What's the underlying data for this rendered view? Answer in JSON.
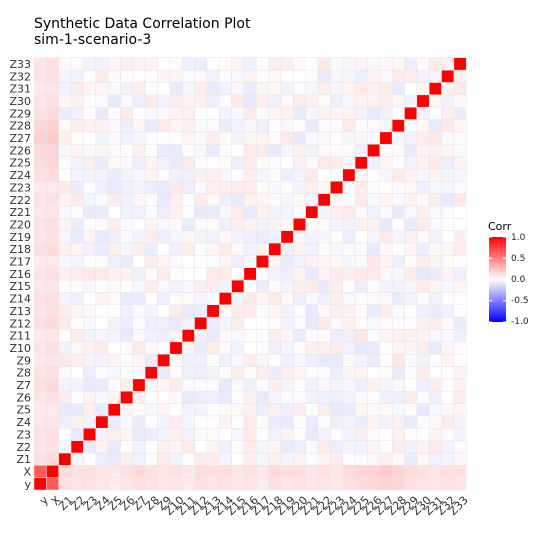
{
  "chart_data": {
    "type": "heatmap",
    "title": "Synthetic Data Correlation Plot",
    "subtitle": "sim-1-scenario-3",
    "variables": [
      "y",
      "X",
      "Z1",
      "Z2",
      "Z3",
      "Z4",
      "Z5",
      "Z6",
      "Z7",
      "Z8",
      "Z9",
      "Z10",
      "Z11",
      "Z12",
      "Z13",
      "Z14",
      "Z15",
      "Z16",
      "Z17",
      "Z18",
      "Z19",
      "Z20",
      "Z21",
      "Z22",
      "Z23",
      "Z24",
      "Z25",
      "Z26",
      "Z27",
      "Z28",
      "Z29",
      "Z30",
      "Z31",
      "Z32",
      "Z33"
    ],
    "correlations": {
      "diagonal": 1.0,
      "y_X": 0.65,
      "y_Z": [
        0.12,
        0.1,
        0.11,
        0.09,
        0.08,
        0.1,
        0.13,
        0.11,
        0.09,
        0.1,
        0.08,
        0.12,
        0.1,
        0.11,
        0.09,
        0.1,
        0.08,
        0.12,
        0.1,
        0.11,
        0.09,
        0.1,
        0.08,
        0.12,
        0.14,
        0.15,
        0.18,
        0.16,
        0.12,
        0.1,
        0.09,
        0.11,
        0.1
      ],
      "X_Z": [
        0.14,
        0.12,
        0.13,
        0.1,
        0.09,
        0.12,
        0.15,
        0.13,
        0.1,
        0.12,
        0.09,
        0.14,
        0.12,
        0.13,
        0.1,
        0.12,
        0.09,
        0.14,
        0.12,
        0.13,
        0.1,
        0.12,
        0.09,
        0.14,
        0.16,
        0.17,
        0.2,
        0.18,
        0.14,
        0.12,
        0.1,
        0.13,
        0.12
      ],
      "Z_Z_range": [
        -0.1,
        0.1
      ]
    },
    "legend": {
      "title": "Corr",
      "ticks": [
        "1.0",
        "0.5",
        "0.0",
        "-0.5",
        "-1.0"
      ],
      "colors": {
        "high": "#FF0000",
        "mid": "#FFFFFF",
        "low": "#0000FF"
      },
      "placement": "right"
    },
    "grid": true
  }
}
